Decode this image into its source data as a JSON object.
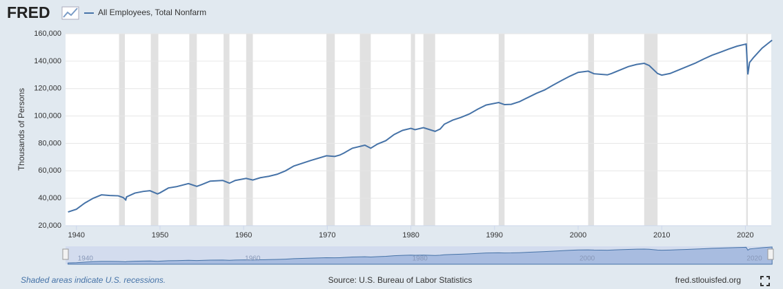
{
  "brand": "FRED",
  "chart_data": {
    "type": "line",
    "y_label": "Thousands of Persons",
    "series": [
      {
        "name": "All Employees, Total Nonfarm",
        "color": "#4572a7",
        "x": [
          1939,
          1940,
          1941,
          1942,
          1943,
          1944,
          1945.0,
          1945.6,
          1945.9,
          1946,
          1947,
          1948,
          1948.8,
          1949.7,
          1950,
          1951,
          1952,
          1953.4,
          1954.4,
          1955,
          1956,
          1957.5,
          1958.3,
          1959,
          1960.3,
          1961.1,
          1962,
          1963,
          1964,
          1965,
          1966,
          1967,
          1968,
          1969.9,
          1970.9,
          1971.5,
          1972,
          1973,
          1974.5,
          1975.2,
          1976,
          1977,
          1978,
          1979,
          1980.0,
          1980.5,
          1981.5,
          1982.9,
          1983.5,
          1984,
          1985,
          1986,
          1987,
          1988,
          1989,
          1990.5,
          1991.2,
          1992,
          1993,
          1994,
          1995,
          1996,
          1997,
          1998,
          1999,
          2000,
          2001.2,
          2001.9,
          2003.5,
          2004,
          2005,
          2006,
          2007,
          2007.9,
          2008.5,
          2009.5,
          2010,
          2011,
          2012,
          2013,
          2014,
          2015,
          2016,
          2017,
          2018,
          2019,
          2020.1,
          2020.3,
          2020.5,
          2021,
          2022,
          2023.2
        ],
        "values": [
          30000,
          32000,
          36500,
          40000,
          42500,
          42000,
          41800,
          40500,
          38800,
          41000,
          43800,
          45000,
          45500,
          43200,
          44000,
          47500,
          48500,
          50700,
          48700,
          50000,
          52500,
          53000,
          51000,
          53000,
          54500,
          53300,
          55000,
          56000,
          57500,
          60000,
          63500,
          65500,
          67500,
          71000,
          70500,
          71500,
          73000,
          76500,
          78700,
          76500,
          79500,
          82000,
          86500,
          89500,
          91000,
          90000,
          91500,
          88800,
          90500,
          94000,
          97000,
          99000,
          101500,
          105000,
          108000,
          109800,
          108300,
          108500,
          110500,
          113500,
          116500,
          119000,
          122500,
          125800,
          129000,
          131800,
          132700,
          130800,
          130000,
          131000,
          133500,
          136000,
          137600,
          138400,
          136800,
          131000,
          129800,
          131000,
          133500,
          136000,
          138500,
          141500,
          144300,
          146500,
          148800,
          150900,
          152500,
          130300,
          139000,
          142800,
          149500,
          155300
        ]
      }
    ],
    "recessions": [
      [
        1945.1,
        1945.8
      ],
      [
        1948.9,
        1949.8
      ],
      [
        1953.5,
        1954.4
      ],
      [
        1957.6,
        1958.3
      ],
      [
        1960.3,
        1961.1
      ],
      [
        1969.9,
        1970.9
      ],
      [
        1973.9,
        1975.2
      ],
      [
        1980.0,
        1980.5
      ],
      [
        1981.5,
        1982.9
      ],
      [
        1990.5,
        1991.2
      ],
      [
        2001.2,
        2001.9
      ],
      [
        2007.9,
        2009.5
      ],
      [
        2020.1,
        2020.3
      ]
    ],
    "xlim": [
      1938.7,
      2023.1
    ],
    "ylim": [
      20000,
      160000
    ],
    "xticks": [
      1940,
      1950,
      1960,
      1970,
      1980,
      1990,
      2000,
      2010,
      2020
    ],
    "yticks": [
      {
        "value": 20000,
        "label": "20,000"
      },
      {
        "value": 40000,
        "label": "40,000"
      },
      {
        "value": 60000,
        "label": "60,000"
      },
      {
        "value": 80000,
        "label": "80,000"
      },
      {
        "value": 100000,
        "label": "100,000"
      },
      {
        "value": 120000,
        "label": "120,000"
      },
      {
        "value": 140000,
        "label": "140,000"
      },
      {
        "value": 160000,
        "label": "160,000"
      }
    ],
    "grid": true,
    "navigator_xticks": [
      1940,
      1960,
      1980,
      2000,
      2020
    ]
  },
  "footer": {
    "note": "Shaded areas indicate U.S. recessions.",
    "source": "Source: U.S. Bureau of Labor Statistics",
    "site": "fred.stlouisfed.org"
  }
}
